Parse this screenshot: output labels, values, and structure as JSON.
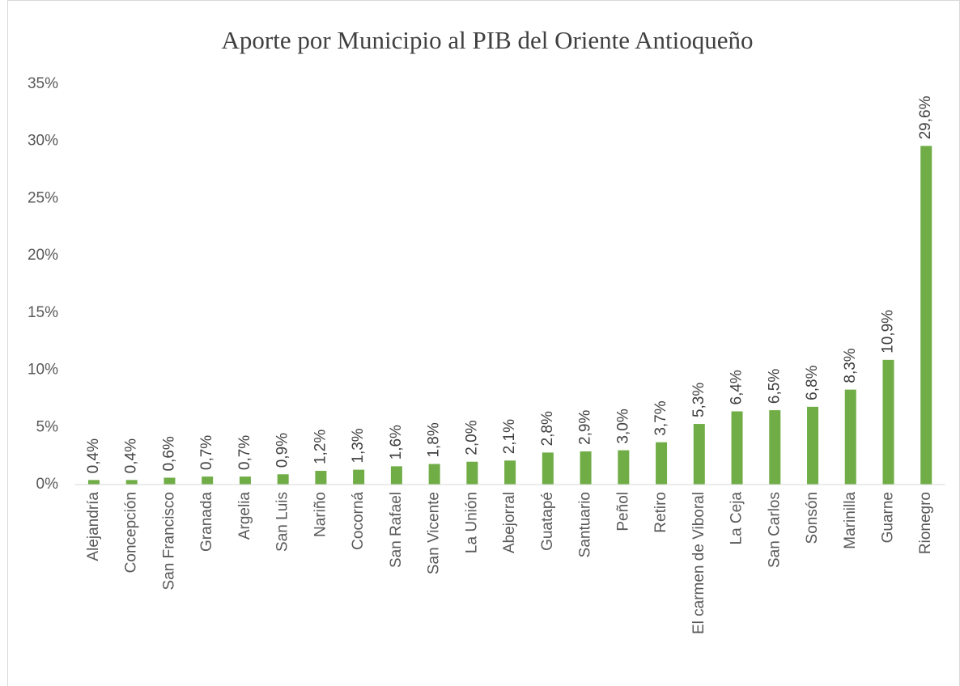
{
  "chart_data": {
    "type": "bar",
    "title": "Aporte por Municipio al PIB del Oriente Antioqueño",
    "categories": [
      "Alejandría",
      "Concepción",
      "San Francisco",
      "Granada",
      "Argelia",
      "San Luis",
      "Nariño",
      "Cocorná",
      "San Rafael",
      "San Vicente",
      "La Unión",
      "Abejorral",
      "Guatapé",
      "Santuario",
      "Peñol",
      "Retiro",
      "El carmen de Viboral",
      "La Ceja",
      "San Carlos",
      "Sonsón",
      "Marinilla",
      "Guarne",
      "Rionegro"
    ],
    "values": [
      0.4,
      0.4,
      0.6,
      0.7,
      0.7,
      0.9,
      1.2,
      1.3,
      1.6,
      1.8,
      2.0,
      2.1,
      2.8,
      2.9,
      3.0,
      3.7,
      5.3,
      6.4,
      6.5,
      6.8,
      8.3,
      10.9,
      29.6
    ],
    "value_labels": [
      "0,4%",
      "0,4%",
      "0,6%",
      "0,7%",
      "0,7%",
      "0,9%",
      "1,2%",
      "1,3%",
      "1,6%",
      "1,8%",
      "2,0%",
      "2,1%",
      "2,8%",
      "2,9%",
      "3,0%",
      "3,7%",
      "5,3%",
      "6,4%",
      "6,5%",
      "6,8%",
      "8,3%",
      "10,9%",
      "29,6%"
    ],
    "color": "#70ad47",
    "ylim": [
      0,
      35
    ],
    "yticks": [
      {
        "value": 0,
        "label": "0%"
      },
      {
        "value": 5,
        "label": "5%"
      },
      {
        "value": 10,
        "label": "10%"
      },
      {
        "value": 15,
        "label": "15%"
      },
      {
        "value": 20,
        "label": "20%"
      },
      {
        "value": 25,
        "label": "25%"
      },
      {
        "value": 30,
        "label": "30%"
      },
      {
        "value": 35,
        "label": "35%"
      }
    ],
    "grid": false
  }
}
